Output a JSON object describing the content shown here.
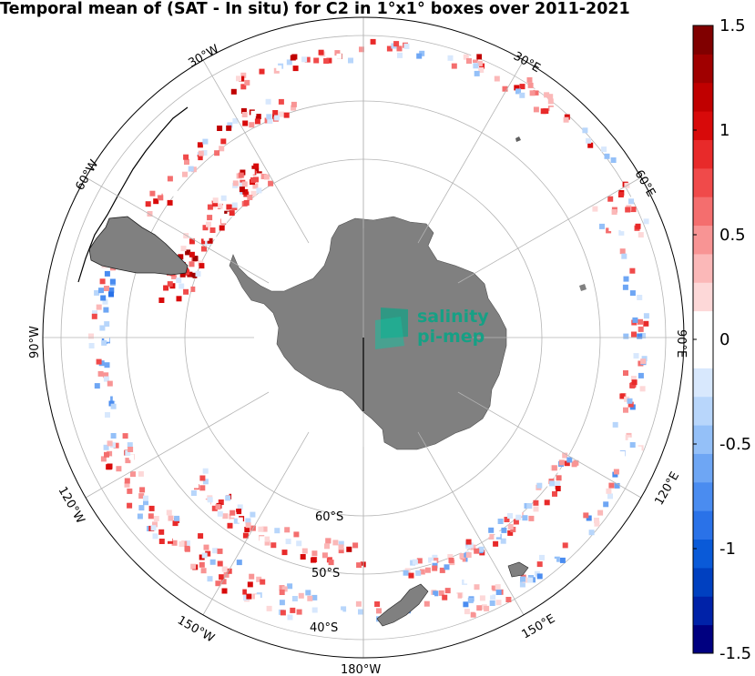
{
  "title": "Temporal mean of (SAT - In situ) for C2 in 1°x1° boxes over 2011-2021",
  "logo": {
    "line1": "salinity",
    "line2": "pi-mep"
  },
  "colors": {
    "land": "#808080",
    "grid": "#b4b4b4",
    "frame": "#000000",
    "logo": "#16a085",
    "colormap": [
      "#000080",
      "#0022a8",
      "#0040c0",
      "#0a5ad8",
      "#2a72e8",
      "#4a8cf0",
      "#6ea6f4",
      "#94c0f8",
      "#b8d6fb",
      "#d8e8fd",
      "#ffffff",
      "#ffffff",
      "#fdd8d8",
      "#fbb8b8",
      "#f89494",
      "#f46e6e",
      "#f04a4a",
      "#e82a2a",
      "#d80a0a",
      "#c00000",
      "#a00000",
      "#800000"
    ]
  },
  "map": {
    "projection": "south polar stereographic",
    "lon_labels": [
      "30°E",
      "60°E",
      "120°E",
      "150°E",
      "180°W",
      "150°W",
      "120°W",
      "90°W",
      "60°W",
      "30°W"
    ],
    "lon_label_30e": "30°E",
    "lon_label_60e": "60°E",
    "lon_label_120e": "120°E",
    "lon_label_150e": "150°E",
    "lon_label_180w": "180°W",
    "lon_label_150w": "150°W",
    "lon_label_120w": "120°W",
    "lon_label_90w": "90°W",
    "lon_label_60w": "60°W",
    "lon_label_30w": "30°W",
    "lon_label_90e": "90°E",
    "lat_label_60s": "60°S",
    "lat_label_50s": "50°S",
    "lat_label_40s": "40°S"
  },
  "colorbar": {
    "vmin": -1.5,
    "vmax": 1.5,
    "ticks": [
      "1.5",
      "1",
      "0.5",
      "0",
      "-0.5",
      "-1",
      "-1.5"
    ]
  }
}
